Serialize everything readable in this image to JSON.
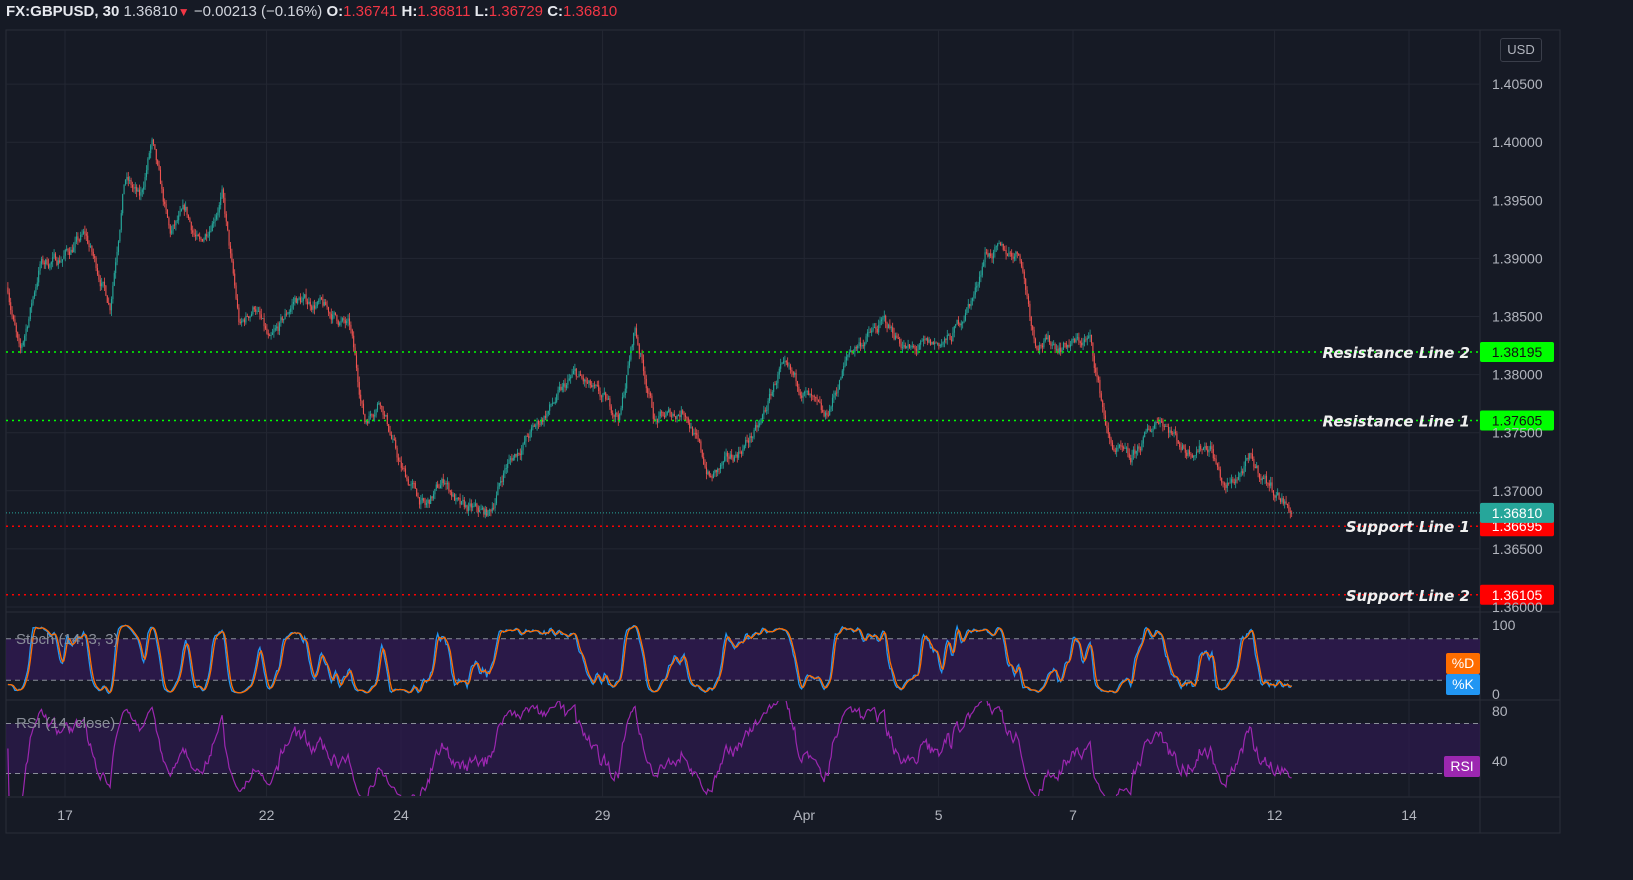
{
  "header": {
    "symbol": "FX:GBPUSD, 30",
    "last": "1.36810",
    "direction_icon": "triangle-down",
    "change": "−0.00213 (−0.16%)",
    "o_label": "O:",
    "o": "1.36741",
    "h_label": "H:",
    "h": "1.36811",
    "l_label": "L:",
    "l": "1.36729",
    "c_label": "C:",
    "c": "1.36810"
  },
  "currency": "USD",
  "colors": {
    "up": "#26a69a",
    "down": "#ef5350",
    "background": "#161a25",
    "grid": "#232733",
    "support": "#ff0000",
    "resistance": "#00ff00",
    "last_price": "#26a69a",
    "stoch_k": "#2196f3",
    "stoch_d": "#ff6d00",
    "rsi": "#9c27b0",
    "band": "#2e1a4f"
  },
  "chart_data": {
    "type": "candlestick",
    "title": "FX:GBPUSD, 30",
    "interval_minutes": 30,
    "price_axis": {
      "range": [
        1.3595,
        1.4095
      ],
      "ticks": [
        "1.36000",
        "1.36500",
        "1.37000",
        "1.37500",
        "1.38000",
        "1.38500",
        "1.39000",
        "1.39500",
        "1.40000",
        "1.40500"
      ]
    },
    "time_axis": {
      "unit": "trading days since Mar 17",
      "ticks": [
        {
          "label": "17",
          "t": 0
        },
        {
          "label": "22",
          "t": 3
        },
        {
          "label": "24",
          "t": 5
        },
        {
          "label": "29",
          "t": 8
        },
        {
          "label": "Apr",
          "t": 11
        },
        {
          "label": "5",
          "t": 13
        },
        {
          "label": "7",
          "t": 15
        },
        {
          "label": "12",
          "t": 18
        },
        {
          "label": "14",
          "t": 20
        }
      ]
    },
    "price_path": [
      [
        -0.85,
        1.3875
      ],
      [
        -0.67,
        1.3815
      ],
      [
        -0.37,
        1.3895
      ],
      [
        -0.07,
        1.39
      ],
      [
        0.3,
        1.392
      ],
      [
        0.67,
        1.386
      ],
      [
        0.89,
        1.397
      ],
      [
        1.12,
        1.395
      ],
      [
        1.29,
        1.4
      ],
      [
        1.56,
        1.392
      ],
      [
        1.79,
        1.394
      ],
      [
        2.01,
        1.391
      ],
      [
        2.34,
        1.3955
      ],
      [
        2.6,
        1.384
      ],
      [
        2.83,
        1.386
      ],
      [
        3.05,
        1.3825
      ],
      [
        3.42,
        1.3865
      ],
      [
        3.79,
        1.386
      ],
      [
        4.24,
        1.384
      ],
      [
        4.46,
        1.376
      ],
      [
        4.69,
        1.378
      ],
      [
        4.99,
        1.372
      ],
      [
        5.36,
        1.3685
      ],
      [
        5.65,
        1.371
      ],
      [
        5.88,
        1.3685
      ],
      [
        6.32,
        1.368
      ],
      [
        6.55,
        1.372
      ],
      [
        7.07,
        1.376
      ],
      [
        7.59,
        1.38
      ],
      [
        7.96,
        1.378
      ],
      [
        8.26,
        1.3765
      ],
      [
        8.48,
        1.384
      ],
      [
        8.78,
        1.376
      ],
      [
        9.23,
        1.377
      ],
      [
        9.6,
        1.371
      ],
      [
        10.04,
        1.3735
      ],
      [
        10.34,
        1.3755
      ],
      [
        10.64,
        1.3805
      ],
      [
        10.94,
        1.379
      ],
      [
        11.31,
        1.376
      ],
      [
        11.68,
        1.382
      ],
      [
        12.2,
        1.3845
      ],
      [
        12.57,
        1.382
      ],
      [
        13.17,
        1.383
      ],
      [
        13.54,
        1.387
      ],
      [
        13.69,
        1.3905
      ],
      [
        14.21,
        1.3905
      ],
      [
        14.43,
        1.383
      ],
      [
        14.81,
        1.3825
      ],
      [
        15.25,
        1.383
      ],
      [
        15.55,
        1.374
      ],
      [
        15.85,
        1.3725
      ],
      [
        16.29,
        1.3765
      ],
      [
        16.67,
        1.3735
      ],
      [
        17.04,
        1.374
      ],
      [
        17.26,
        1.37
      ],
      [
        17.63,
        1.3725
      ],
      [
        17.93,
        1.3705
      ],
      [
        18.27,
        1.3681
      ]
    ],
    "levels": [
      {
        "name": "Resistance Line 2",
        "value": 1.38195,
        "label": "1.38195",
        "kind": "resistance"
      },
      {
        "name": "Resistance Line 1",
        "value": 1.37605,
        "label": "1.37605",
        "kind": "resistance"
      },
      {
        "name": "Support Line 1",
        "value": 1.36695,
        "label": "1.36695",
        "kind": "support"
      },
      {
        "name": "Support Line 2",
        "value": 1.36105,
        "label": "1.36105",
        "kind": "support"
      }
    ],
    "last_price": {
      "value": 1.3681,
      "label": "1.36810"
    },
    "indicators": {
      "stoch": {
        "title": "Stoch (14, 3, 3)",
        "params": [
          14,
          3,
          3
        ],
        "ticks": [
          {
            "label": "100",
            "v": 100
          },
          {
            "label": "0",
            "v": 0
          }
        ],
        "bands": [
          20,
          80
        ],
        "d_label": "%D",
        "k_label": "%K"
      },
      "rsi": {
        "title": "RSI (14, close)",
        "period": 14,
        "ticks": [
          {
            "label": "80",
            "v": 80
          },
          {
            "label": "40",
            "v": 40
          }
        ],
        "bands": [
          30,
          70
        ],
        "label": "RSI"
      }
    }
  }
}
